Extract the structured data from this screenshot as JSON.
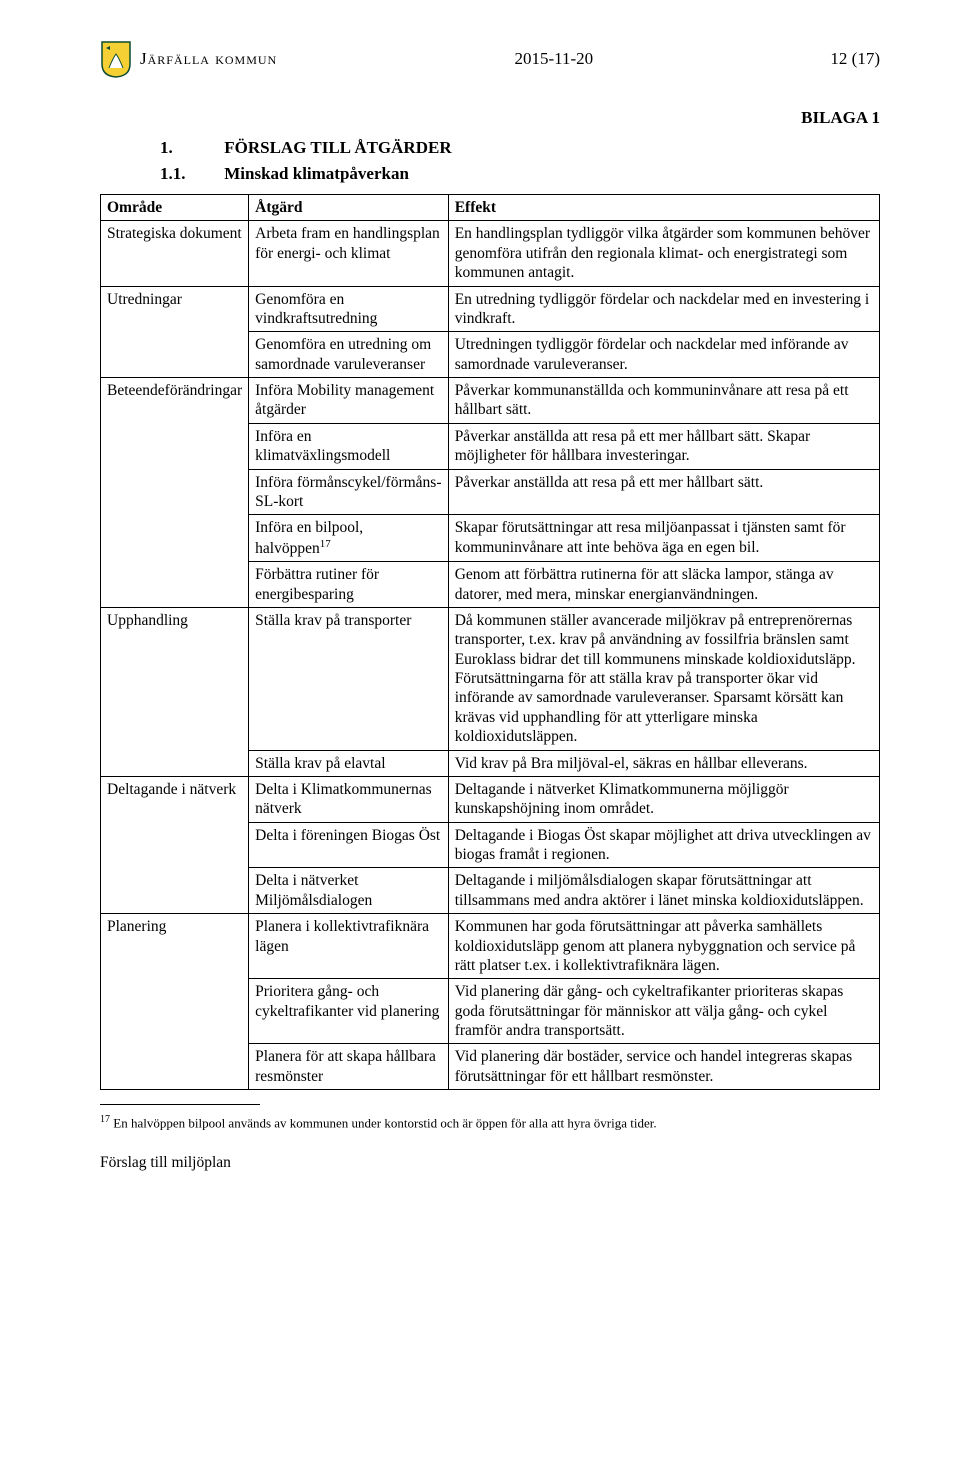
{
  "header": {
    "org_name": "Järfälla kommun",
    "date": "2015-11-20",
    "page_indicator": "12 (17)"
  },
  "bilaga": "BILAGA 1",
  "section": {
    "num": "1.",
    "title": "FÖRSLAG TILL ÅTGÄRDER"
  },
  "subsection": {
    "num": "1.1.",
    "title": "Minskad klimatpåverkan"
  },
  "table": {
    "headers": {
      "c1": "Område",
      "c2": "Åtgärd",
      "c3": "Effekt"
    },
    "groups": [
      {
        "area": "Strategiska dokument",
        "rows": [
          {
            "atgard": "Arbeta fram en handlingsplan för energi- och klimat",
            "effekt": "En handlingsplan tydliggör vilka åtgärder som kommunen behöver genomföra utifrån den regionala klimat- och energistrategi som kommunen antagit."
          }
        ]
      },
      {
        "area": "Utredningar",
        "rows": [
          {
            "atgard": "Genomföra en vindkraftsutredning",
            "effekt": "En utredning tydliggör fördelar och nackdelar med en investering i vindkraft."
          },
          {
            "atgard": "Genomföra en utredning om samordnade varuleveranser",
            "effekt": "Utredningen tydliggör fördelar och nackdelar med införande av samordnade varuleveranser."
          }
        ]
      },
      {
        "area": "Beteendeförändringar",
        "rows": [
          {
            "atgard": "Införa Mobility management åtgärder",
            "effekt": "Påverkar kommunanställda och kommuninvånare att resa på ett hållbart sätt."
          },
          {
            "atgard": "Införa en klimatväxlingsmodell",
            "effekt": "Påverkar anställda att resa på ett mer hållbart sätt. Skapar möjligheter för hållbara investeringar."
          },
          {
            "atgard": "Införa förmånscykel/förmåns-SL-kort",
            "effekt": "Påverkar anställda att resa på ett mer hållbart sätt."
          },
          {
            "atgard": "Införa en bilpool, halvöppen",
            "atgard_sup": "17",
            "effekt": "Skapar förutsättningar att resa miljöanpassat i tjänsten samt för kommuninvånare att inte behöva äga en egen bil."
          },
          {
            "atgard": "Förbättra rutiner för energibesparing",
            "effekt": "Genom att förbättra rutinerna för att släcka lampor, stänga av datorer, med mera, minskar energianvändningen."
          }
        ]
      },
      {
        "area": "Upphandling",
        "rows": [
          {
            "atgard": "Ställa krav på transporter",
            "effekt": "Då kommunen ställer avancerade miljökrav på entreprenörernas transporter, t.ex. krav på användning av fossilfria bränslen samt Euroklass bidrar det till kommunens minskade koldioxidutsläpp. Förutsättningarna för att ställa krav på transporter ökar vid införande av samordnade varuleveranser. Sparsamt körsätt kan krävas vid upphandling för att ytterligare minska koldioxidutsläppen."
          },
          {
            "atgard": "Ställa krav på elavtal",
            "effekt": "Vid krav på Bra miljöval-el, säkras en hållbar elleverans."
          }
        ]
      },
      {
        "area": "Deltagande i nätverk",
        "rows": [
          {
            "atgard": "Delta i Klimatkommunernas nätverk",
            "effekt": "Deltagande i nätverket Klimatkommunerna möjliggör kunskapshöjning inom området."
          },
          {
            "atgard": "Delta i föreningen Biogas Öst",
            "effekt": "Deltagande i Biogas Öst skapar möjlighet att driva utvecklingen av biogas framåt i regionen."
          },
          {
            "atgard": "Delta i nätverket Miljömålsdialogen",
            "effekt": "Deltagande i miljömålsdialogen skapar förutsättningar att tillsammans med andra aktörer i länet minska koldioxidutsläppen."
          }
        ]
      },
      {
        "area": "Planering",
        "rows": [
          {
            "atgard": "Planera i kollektivtrafiknära lägen",
            "effekt": "Kommunen har goda förutsättningar att påverka samhällets koldioxidutsläpp genom att planera nybyggnation och service på rätt platser t.ex. i kollektivtrafiknära lägen."
          },
          {
            "atgard": "Prioritera gång- och cykeltrafikanter vid planering",
            "effekt": "Vid planering där gång- och cykeltrafikanter prioriteras skapas goda förutsättningar för människor att välja gång- och cykel framför andra transportsätt."
          },
          {
            "atgard": "Planera för att skapa hållbara resmönster",
            "effekt": "Vid planering där bostäder, service och handel integreras skapas förutsättningar för ett hållbart resmönster."
          }
        ]
      }
    ]
  },
  "footnote": {
    "num": "17",
    "text": " En halvöppen bilpool används av kommunen under kontorstid och är öppen för alla att hyra övriga tider."
  },
  "footer": "Förslag till miljöplan"
}
